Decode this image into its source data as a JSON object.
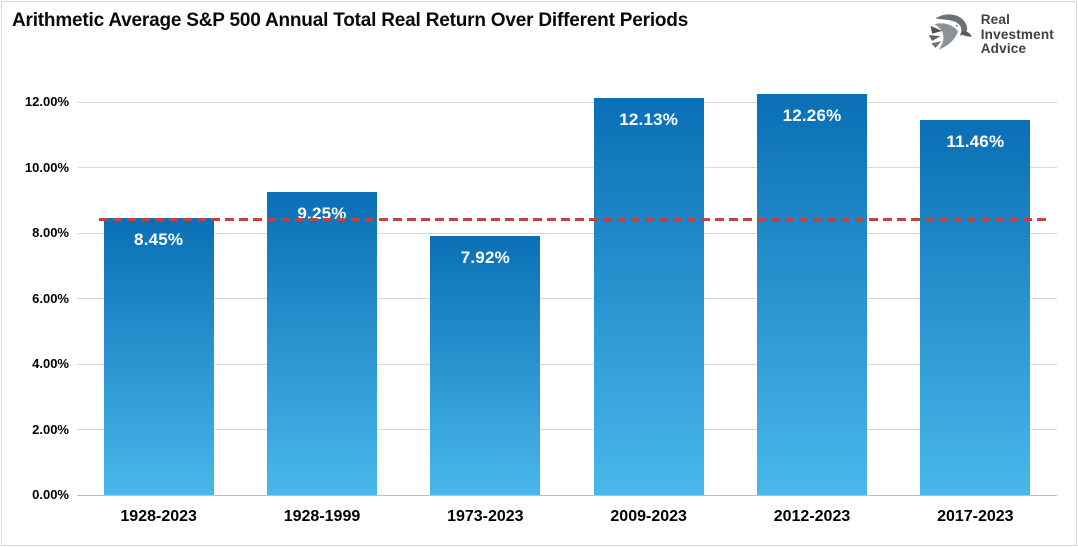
{
  "header": {
    "title": "Arithmetic Average S&P 500 Annual Total Real Return Over Different Periods",
    "logo": {
      "icon": "eagle-logo-icon",
      "lines": [
        "Real",
        "Investment",
        "Advice"
      ]
    }
  },
  "chart_data": {
    "type": "bar",
    "title": "Arithmetic Average S&P 500 Annual Total Real Return Over Different Periods",
    "categories": [
      "1928-2023",
      "1928-1999",
      "1973-2023",
      "2009-2023",
      "2012-2023",
      "2017-2023"
    ],
    "values": [
      8.45,
      9.25,
      7.92,
      12.13,
      12.26,
      11.46
    ],
    "value_labels": [
      "8.45%",
      "9.25%",
      "7.92%",
      "12.13%",
      "12.26%",
      "11.46%"
    ],
    "xlabel": "",
    "ylabel": "",
    "ylim": [
      0,
      12
    ],
    "yticks": [
      0,
      2,
      4,
      6,
      8,
      10,
      12
    ],
    "ytick_labels": [
      "0.00%",
      "2.00%",
      "4.00%",
      "6.00%",
      "8.00%",
      "10.00%",
      "12.00%"
    ],
    "grid": "horizontal",
    "legend": "none",
    "reference_line": {
      "value": 8.4,
      "style": "dashed",
      "color": "#bf4340",
      "meaning": "long-term average level"
    },
    "colors": {
      "bar_gradient_top": "#0a6fb5",
      "bar_gradient_bottom": "#48b8ea",
      "gridline": "#d9d9d9",
      "baseline": "#bfbfbf",
      "label_text": "#ffffff"
    }
  }
}
